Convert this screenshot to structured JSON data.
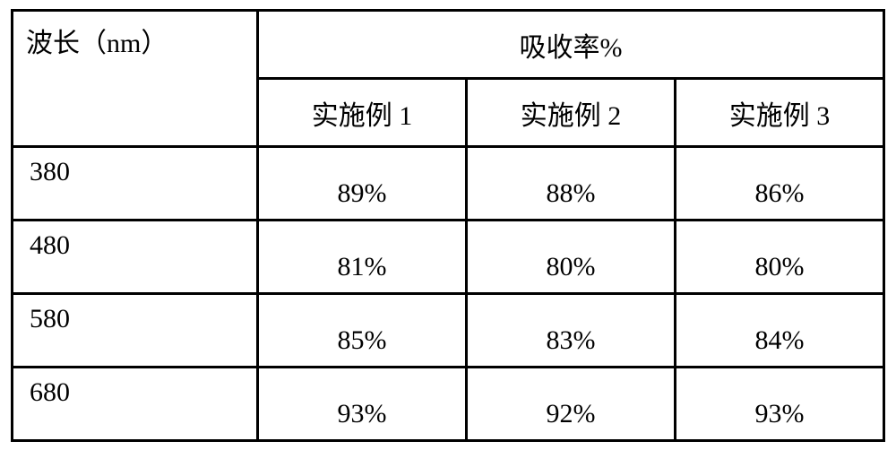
{
  "table": {
    "header_left": "波长（nm）",
    "header_group": "吸收率%",
    "sub_headers": [
      "实施例 1",
      "实施例 2",
      "实施例 3"
    ],
    "rows": [
      {
        "label": "380",
        "values": [
          "89%",
          "88%",
          "86%"
        ]
      },
      {
        "label": "480",
        "values": [
          "81%",
          "80%",
          "80%"
        ]
      },
      {
        "label": "580",
        "values": [
          "85%",
          "83%",
          "84%"
        ]
      },
      {
        "label": "680",
        "values": [
          "93%",
          "92%",
          "93%"
        ]
      }
    ],
    "border_color": "#000000",
    "background_color": "#ffffff",
    "text_color": "#000000",
    "font_size": 30
  }
}
